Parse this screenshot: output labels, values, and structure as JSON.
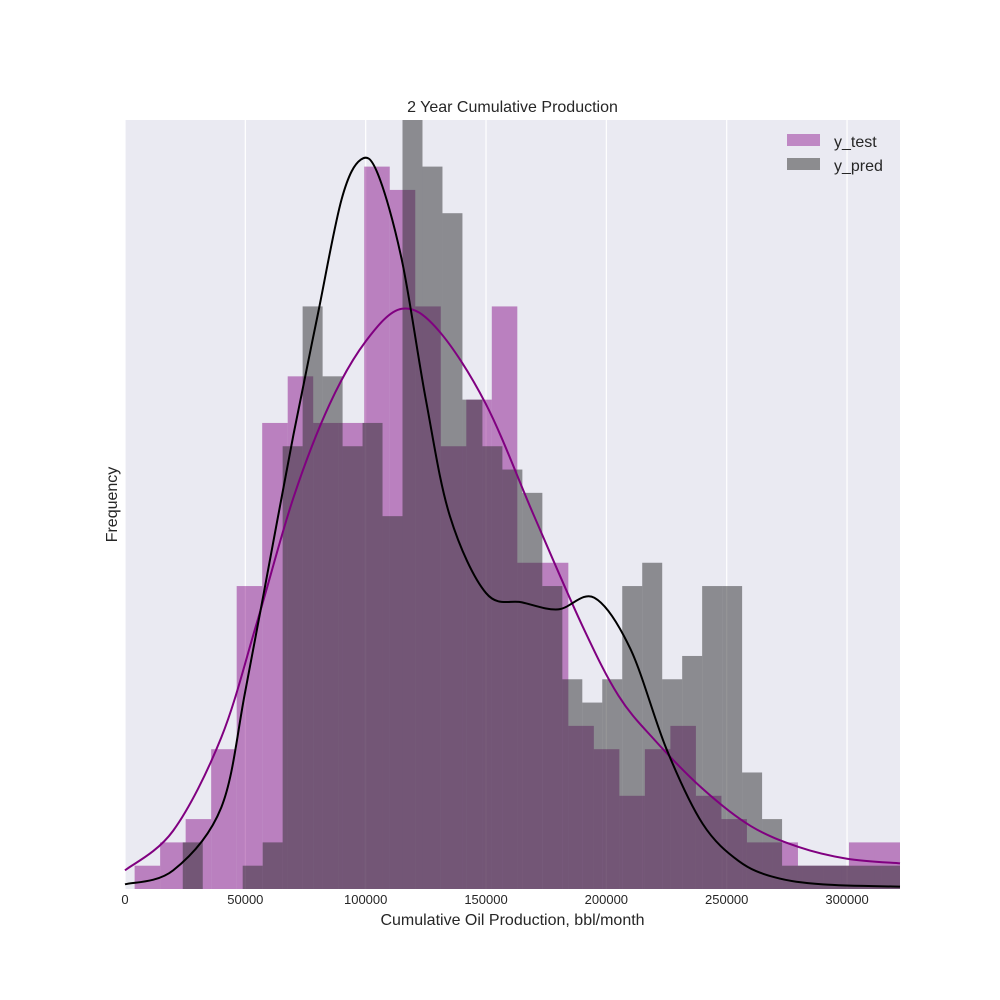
{
  "chart_data": {
    "type": "histogram",
    "title": "2 Year Cumulative Production",
    "xlabel": "Cumulative Oil Production, bbl/month",
    "ylabel": "Frequency",
    "xlim": [
      0,
      322000
    ],
    "ylim": [
      0,
      33
    ],
    "grid": true,
    "legend_position": "top-right",
    "x_ticks": [
      0,
      50000,
      100000,
      150000,
      200000,
      250000,
      300000
    ],
    "x_tick_labels": [
      "0",
      "50000",
      "100000",
      "150000",
      "200000",
      "250000",
      "300000"
    ],
    "colors": {
      "y_test": "#bf88c4",
      "y_pred": "#8c8c8f",
      "overlap": "#735572",
      "kde_test": "#800080",
      "kde_pred": "#000000",
      "plot_bg": "#eaeaf2",
      "grid": "#ffffff"
    },
    "series": [
      {
        "name": "y_test",
        "edges": [
          4000,
          14600,
          25200,
          35800,
          46400,
          57000,
          67600,
          78200,
          88800,
          99400,
          110000,
          120600,
          131200,
          141800,
          152400,
          163000,
          173600,
          184200,
          194800,
          205400,
          216000,
          226600,
          237200,
          247800,
          258400,
          269000,
          279600,
          290200,
          300800,
          311400,
          322000
        ],
        "counts": [
          1,
          2,
          3,
          6,
          13,
          20,
          22,
          20,
          20,
          31,
          30,
          25,
          19,
          21,
          25,
          14,
          14,
          7,
          6,
          4,
          6,
          7,
          4,
          3,
          2,
          2,
          1,
          1,
          2,
          2
        ]
      },
      {
        "name": "y_pred",
        "edges": [
          24000,
          32300,
          40600,
          48900,
          57200,
          65500,
          73800,
          82100,
          90400,
          98700,
          107000,
          115300,
          123600,
          131900,
          140200,
          148500,
          156800,
          165100,
          173400,
          181700,
          190000,
          198300,
          206600,
          214900,
          223200,
          231500,
          239800,
          248100,
          256400,
          264700,
          273000,
          281300,
          289600,
          297900,
          306200,
          314500,
          322000
        ],
        "counts": [
          2,
          0,
          0,
          1,
          2,
          19,
          25,
          22,
          19,
          20,
          16,
          33,
          31,
          29,
          21,
          19,
          18,
          17,
          13,
          9,
          8,
          9,
          13,
          14,
          9,
          10,
          13,
          13,
          5,
          3,
          1,
          1,
          1,
          1,
          1,
          1
        ]
      },
      {
        "name": "kde_test",
        "x": [
          0,
          20000,
          40000,
          55000,
          70000,
          85000,
          100000,
          115000,
          130000,
          150000,
          170000,
          190000,
          205000,
          220000,
          240000,
          260000,
          280000,
          300000,
          322000
        ],
        "y": [
          0.8,
          2.5,
          6.5,
          11.5,
          16.8,
          20.8,
          23.5,
          24.9,
          24.0,
          20.8,
          16.0,
          11.3,
          8.3,
          6.4,
          4.3,
          2.7,
          1.8,
          1.3,
          1.1
        ]
      },
      {
        "name": "kde_pred",
        "x": [
          0,
          20000,
          40000,
          50000,
          60000,
          70000,
          80000,
          90000,
          98000,
          105000,
          115000,
          125000,
          135000,
          150000,
          165000,
          180000,
          195000,
          210000,
          225000,
          240000,
          255000,
          270000,
          290000,
          322000
        ],
        "y": [
          0.2,
          0.8,
          3.5,
          8.5,
          14.0,
          19.5,
          24.6,
          29.6,
          31.3,
          30.7,
          27.0,
          21.0,
          16.0,
          12.7,
          12.3,
          12.0,
          12.5,
          10.3,
          6.0,
          2.8,
          1.2,
          0.5,
          0.2,
          0.1
        ]
      }
    ]
  }
}
